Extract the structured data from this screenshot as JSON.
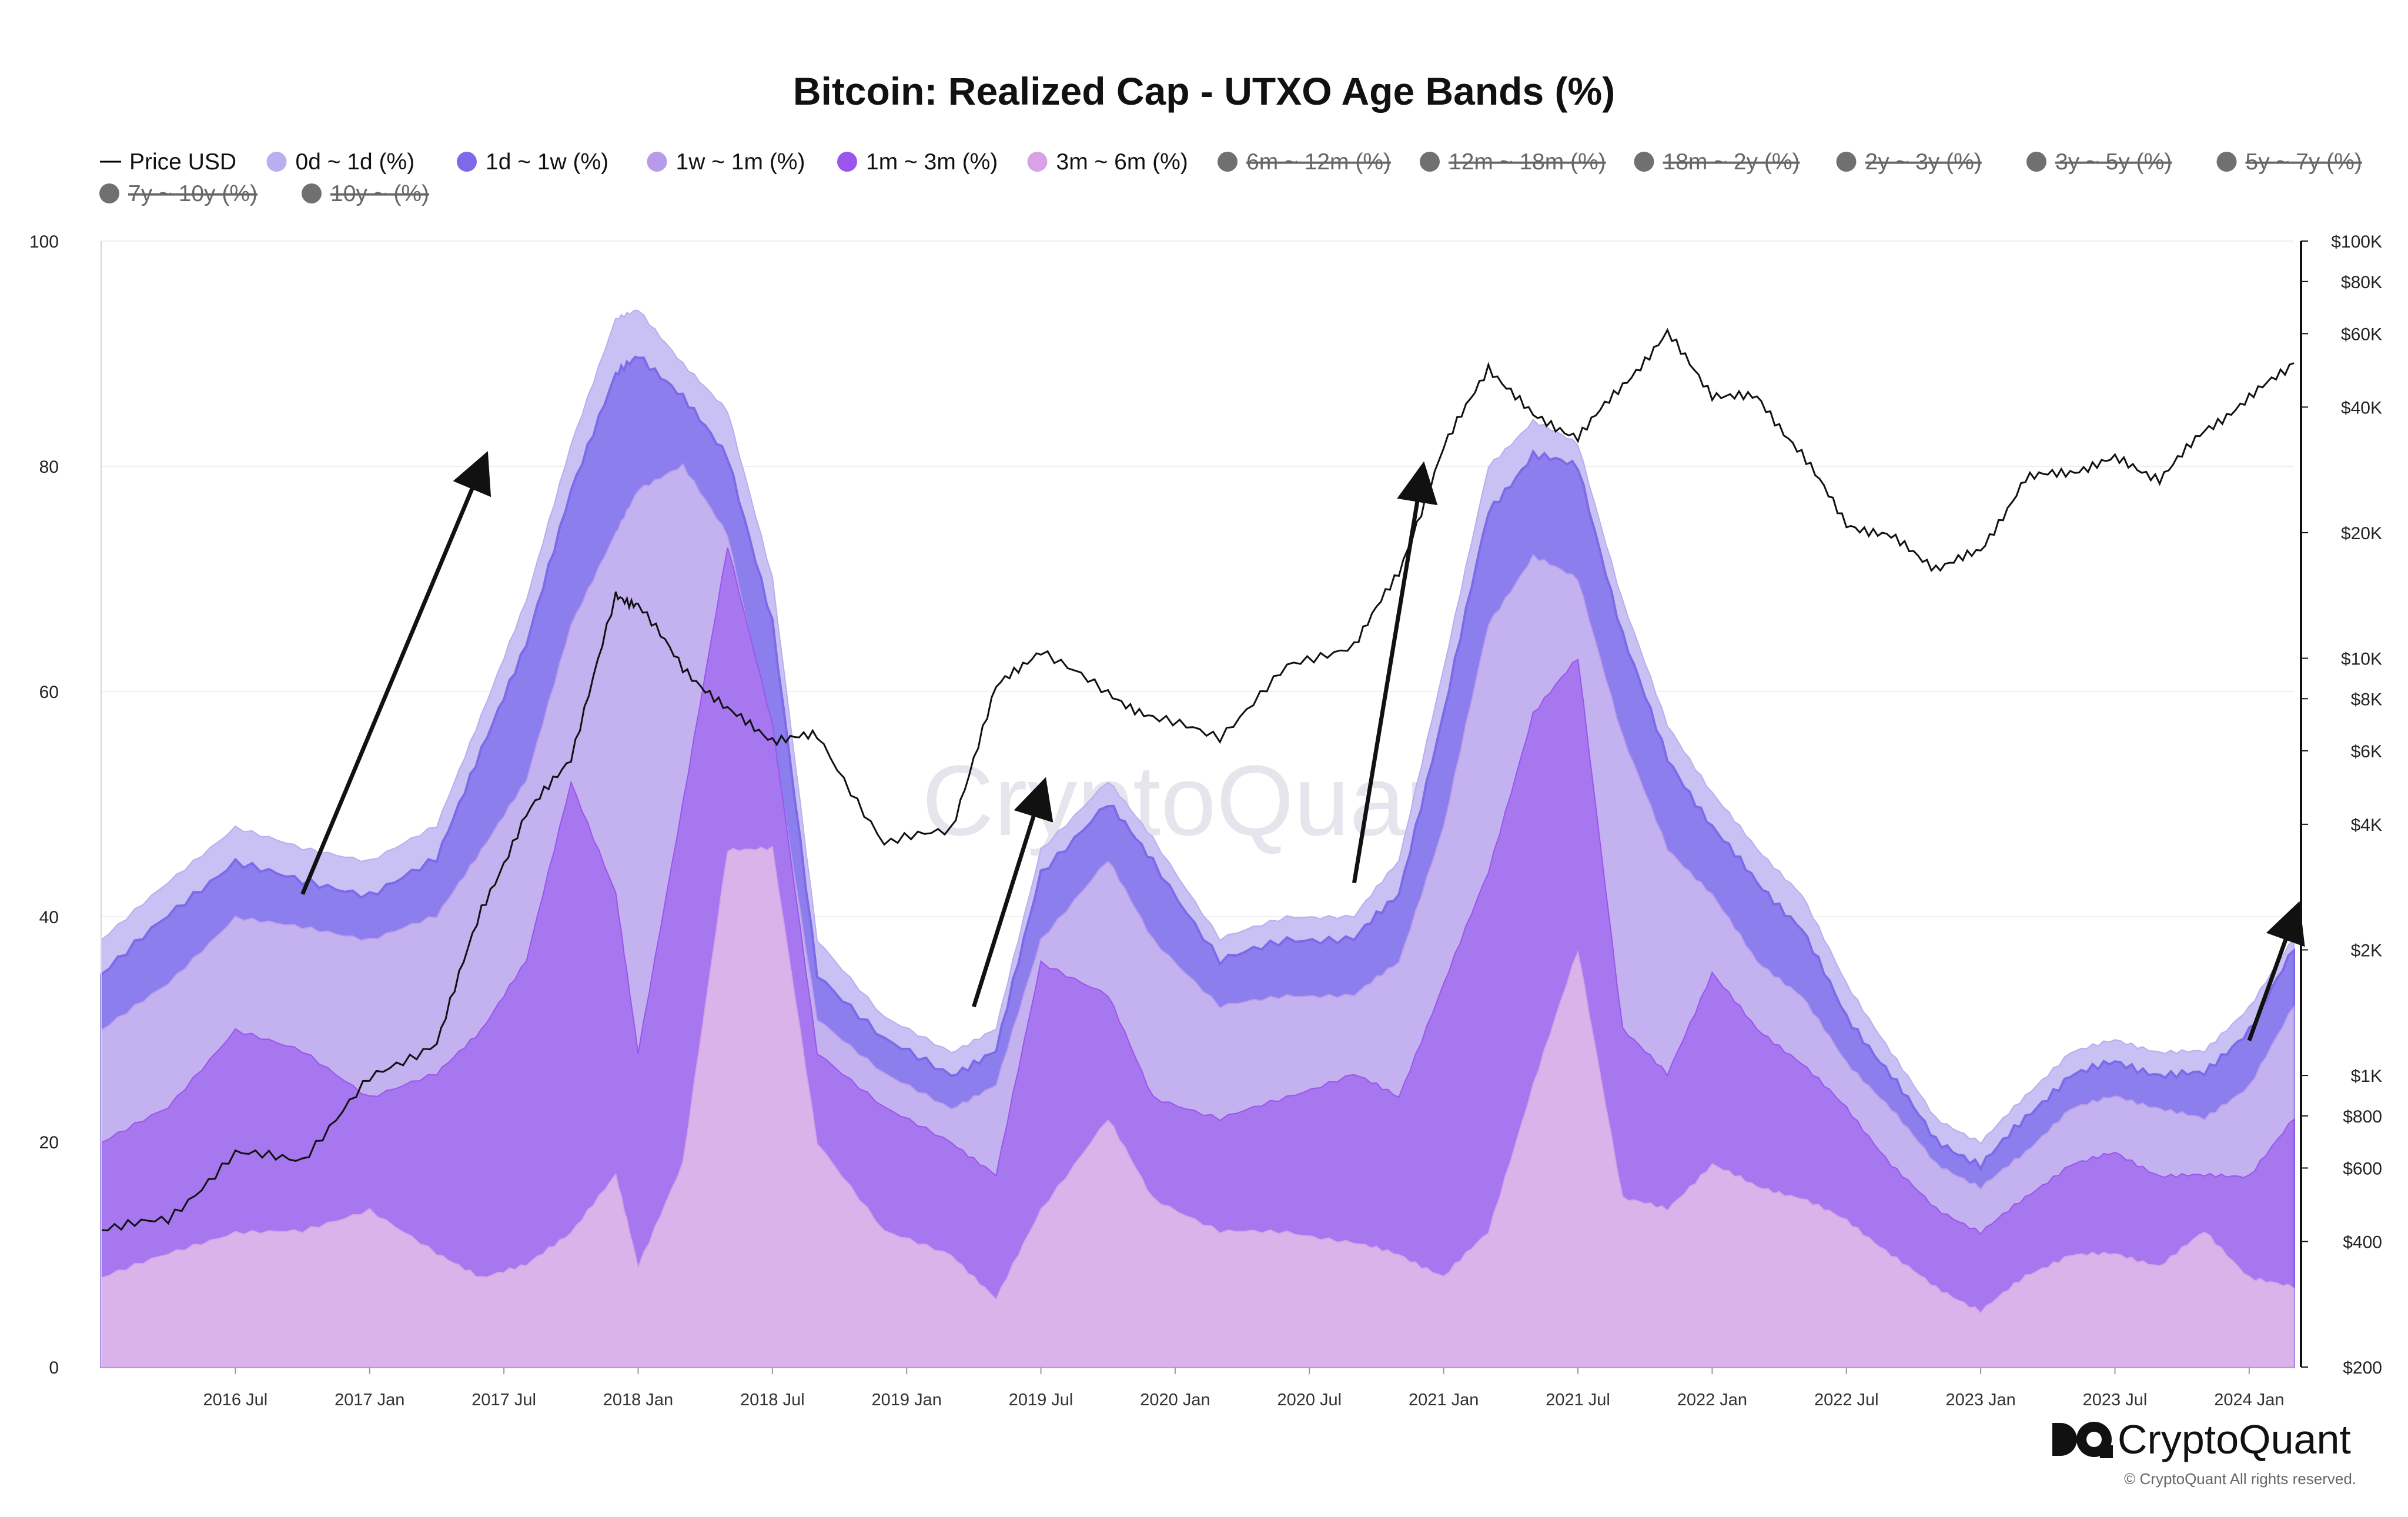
{
  "chart_data": {
    "type": "area",
    "title": "Bitcoin: Realized Cap - UTXO Age Bands (%)",
    "x_ticks": [
      "2016 Jul",
      "2017 Jan",
      "2017 Jul",
      "2018 Jan",
      "2018 Jul",
      "2019 Jan",
      "2019 Jul",
      "2020 Jan",
      "2020 Jul",
      "2021 Jan",
      "2021 Jul",
      "2022 Jan",
      "2022 Jul",
      "2023 Jan",
      "2023 Jul",
      "2024 Jan"
    ],
    "y_left": {
      "ticks": [
        "0",
        "20",
        "40",
        "60",
        "80",
        "100"
      ],
      "range": [
        0,
        100
      ]
    },
    "y_right": {
      "scale": "log",
      "ticks": [
        "$200",
        "$400",
        "$600",
        "$800",
        "$1K",
        "$2K",
        "$4K",
        "$6K",
        "$8K",
        "$10K",
        "$20K",
        "$40K",
        "$60K",
        "$80K",
        "$100K"
      ],
      "range": [
        200,
        100000
      ]
    },
    "x_range": [
      "2016-01",
      "2024-03"
    ],
    "grid": true,
    "legend_position": "top",
    "legend": [
      {
        "label": "Price USD",
        "marker": "line",
        "color": "#000000",
        "active": true
      },
      {
        "label": "0d ~ 1d (%)",
        "marker": "dot",
        "color": "#b8aef0",
        "active": true
      },
      {
        "label": "1d ~ 1w (%)",
        "marker": "dot",
        "color": "#7d6ae8",
        "active": true
      },
      {
        "label": "1w ~ 1m (%)",
        "marker": "dot",
        "color": "#b89be8",
        "active": true
      },
      {
        "label": "1m ~ 3m (%)",
        "marker": "dot",
        "color": "#9a55ec",
        "active": true
      },
      {
        "label": "3m ~ 6m (%)",
        "marker": "dot",
        "color": "#d8a2e6",
        "active": true
      },
      {
        "label": "6m ~ 12m (%)",
        "marker": "dot",
        "color": "#707070",
        "active": false
      },
      {
        "label": "12m ~ 18m (%)",
        "marker": "dot",
        "color": "#707070",
        "active": false
      },
      {
        "label": "18m ~ 2y (%)",
        "marker": "dot",
        "color": "#707070",
        "active": false
      },
      {
        "label": "2y ~ 3y (%)",
        "marker": "dot",
        "color": "#707070",
        "active": false
      },
      {
        "label": "3y ~ 5y (%)",
        "marker": "dot",
        "color": "#707070",
        "active": false
      },
      {
        "label": "5y ~ 7y (%)",
        "marker": "dot",
        "color": "#707070",
        "active": false
      },
      {
        "label": "7y ~ 10y (%)",
        "marker": "dot",
        "color": "#707070",
        "active": false
      },
      {
        "label": "10y ~ (%)",
        "marker": "dot",
        "color": "#707070",
        "active": false
      }
    ],
    "cumulative_series_dates": [
      "2016-01",
      "2016-04",
      "2016-07",
      "2016-10",
      "2017-01",
      "2017-04",
      "2017-06",
      "2017-08",
      "2017-10",
      "2017-12",
      "2018-01",
      "2018-03",
      "2018-05",
      "2018-07",
      "2018-09",
      "2018-12",
      "2019-03",
      "2019-05",
      "2019-07",
      "2019-10",
      "2019-12",
      "2020-03",
      "2020-06",
      "2020-09",
      "2020-11",
      "2021-01",
      "2021-03",
      "2021-05",
      "2021-07",
      "2021-09",
      "2021-11",
      "2022-01",
      "2022-03",
      "2022-05",
      "2022-07",
      "2022-09",
      "2022-11",
      "2023-01",
      "2023-03",
      "2023-05",
      "2023-07",
      "2023-09",
      "2023-11",
      "2024-01",
      "2024-03"
    ],
    "series": [
      {
        "name": "0d ~ 1d (%)",
        "values": [
          38,
          43,
          48,
          46,
          45,
          48,
          58,
          68,
          82,
          93,
          94,
          89,
          85,
          70,
          38,
          31,
          28,
          30,
          46,
          52,
          47,
          38,
          40,
          40,
          45,
          62,
          80,
          84,
          82,
          68,
          57,
          51,
          46,
          42,
          34,
          28,
          22,
          20,
          24,
          28,
          29,
          28,
          28,
          32,
          38
        ]
      },
      {
        "name": "1d ~ 1w (%)",
        "values": [
          35,
          40,
          45,
          43,
          42,
          45,
          55,
          64,
          78,
          88,
          90,
          86,
          81,
          66,
          35,
          29,
          26,
          28,
          44,
          50,
          45,
          36,
          38,
          38,
          42,
          58,
          76,
          81,
          80,
          65,
          54,
          48,
          43,
          39,
          31,
          26,
          20,
          18,
          22,
          26,
          27,
          26,
          26,
          30,
          37
        ]
      },
      {
        "name": "1w ~ 1m (%)",
        "values": [
          30,
          34,
          40,
          39,
          38,
          40,
          46,
          52,
          66,
          74,
          78,
          80,
          74,
          56,
          31,
          26,
          23,
          25,
          38,
          45,
          38,
          32,
          33,
          33,
          36,
          48,
          66,
          72,
          70,
          56,
          46,
          42,
          36,
          33,
          27,
          23,
          18,
          16,
          19,
          23,
          24,
          23,
          22,
          25,
          32
        ]
      },
      {
        "name": "1m ~ 3m (%)",
        "values": [
          20,
          23,
          30,
          28,
          24,
          26,
          30,
          36,
          52,
          42,
          28,
          50,
          73,
          57,
          28,
          23,
          20,
          17,
          36,
          33,
          24,
          22,
          24,
          26,
          24,
          34,
          44,
          58,
          63,
          30,
          26,
          35,
          30,
          27,
          23,
          18,
          14,
          12,
          15,
          18,
          19,
          17,
          17,
          17,
          22
        ]
      },
      {
        "name": "3m ~ 6m (%)",
        "values": [
          8,
          10,
          12,
          12,
          14,
          10,
          8,
          9,
          12,
          17,
          9,
          18,
          46,
          46,
          20,
          12,
          10,
          6,
          14,
          22,
          15,
          12,
          12,
          11,
          10,
          8,
          12,
          25,
          37,
          15,
          14,
          18,
          16,
          15,
          13,
          10,
          7,
          5,
          8,
          10,
          10,
          9,
          12,
          8,
          7
        ]
      },
      {
        "name": "Price USD",
        "axis": "right",
        "values": [
          430,
          450,
          650,
          630,
          980,
          1200,
          2500,
          4200,
          5800,
          14000,
          13500,
          9500,
          7500,
          6400,
          6500,
          3600,
          3900,
          8500,
          10500,
          8200,
          7200,
          6500,
          9500,
          10800,
          16000,
          32000,
          50000,
          38000,
          34000,
          45000,
          60000,
          43000,
          42000,
          31000,
          21000,
          19500,
          16500,
          18000,
          27000,
          28000,
          30000,
          27000,
          35000,
          42000,
          51000
        ]
      }
    ]
  },
  "brand": {
    "name": "CryptoQuant",
    "copyright": "© CryptoQuant All rights reserved.",
    "watermark": "CryptoQuant"
  }
}
